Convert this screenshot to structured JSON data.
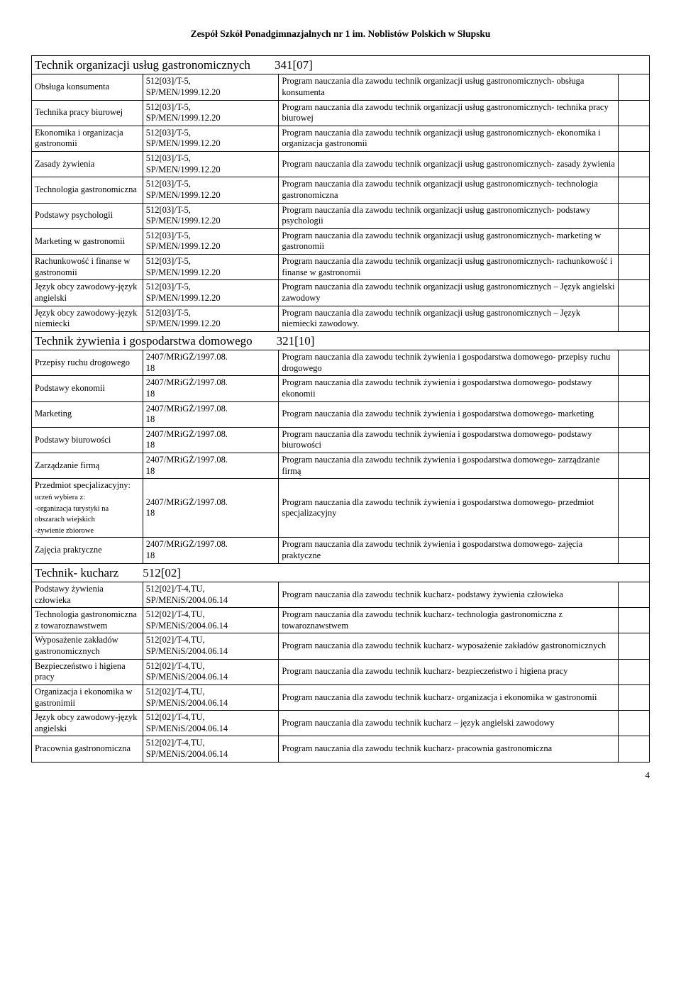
{
  "header": "Zespół Szkół Ponadgimnazjalnych nr 1 im. Noblistów Polskich w Słupsku",
  "page_number": "4",
  "sections": [
    {
      "title_parts": [
        "Technik organizacji usług gastronomicznych",
        "341[07]"
      ],
      "code_const": "512[03]/T-5,\nSP/MEN/1999.12.20",
      "rows": [
        {
          "subj": "Obsługa konsumenta",
          "desc": "Program nauczania dla zawodu technik organizacji usług gastronomicznych- obsługa konsumenta"
        },
        {
          "subj": "Technika pracy biurowej",
          "desc": "Program nauczania dla zawodu technik organizacji usług gastronomicznych- technika pracy biurowej"
        },
        {
          "subj": "Ekonomika i organizacja gastronomii",
          "desc": "Program nauczania dla zawodu technik organizacji usług gastronomicznych- ekonomika i organizacja gastronomii"
        },
        {
          "subj": "Zasady żywienia",
          "desc": "Program nauczania dla zawodu technik organizacji usług gastronomicznych- zasady żywienia"
        },
        {
          "subj": "Technologia gastronomiczna",
          "desc": "Program nauczania dla zawodu technik organizacji usług gastronomicznych- technologia gastronomiczna"
        },
        {
          "subj": "Podstawy psychologii",
          "desc": "Program nauczania dla zawodu technik organizacji usług gastronomicznych- podstawy psychologii"
        },
        {
          "subj": "Marketing w gastronomii",
          "desc": "Program nauczania dla zawodu technik organizacji usług gastronomicznych- marketing w gastronomii"
        },
        {
          "subj": "Rachunkowość i finanse w gastronomii",
          "desc": "Program nauczania dla zawodu technik organizacji usług gastronomicznych- rachunkowość i finanse w gastronomii"
        },
        {
          "subj": "Język obcy zawodowy-język angielski",
          "desc": "Program nauczania dla zawodu technik organizacji usług gastronomicznych – Język angielski zawodowy"
        },
        {
          "subj": "Język obcy zawodowy-język niemiecki",
          "desc": "Program nauczania dla zawodu technik organizacji usług gastronomicznych – Język niemiecki zawodowy."
        }
      ]
    },
    {
      "title_parts": [
        "Technik żywienia i gospodarstwa domowego",
        "321[10]"
      ],
      "code_const": "2407/MRiGŻ/1997.08.\n18",
      "code_align": "center",
      "rows": [
        {
          "subj": "Przepisy ruchu drogowego",
          "desc": "Program nauczania dla zawodu technik żywienia i gospodarstwa domowego- przepisy ruchu drogowego"
        },
        {
          "subj": "Podstawy ekonomii",
          "desc": "Program nauczania dla zawodu technik żywienia i gospodarstwa domowego- podstawy ekonomii"
        },
        {
          "subj": "Marketing",
          "desc": "Program nauczania dla zawodu technik żywienia i gospodarstwa domowego- marketing"
        },
        {
          "subj": "Podstawy biurowości",
          "desc": "Program nauczania dla zawodu technik żywienia i gospodarstwa domowego- podstawy biurowości"
        },
        {
          "subj": "Zarządzanie firmą",
          "desc": "Program nauczania dla zawodu technik żywienia i gospodarstwa domowego- zarządzanie firmą"
        },
        {
          "subj_html": "Przedmiot specjalizacyjny:<br><span class='small-note'>uczeń wybiera z:<br>-organizacja turystyki na obszarach wiejskich<br>-żywienie zbiorowe</span>",
          "desc": "Program nauczania dla zawodu technik żywienia i gospodarstwa domowego- przedmiot specjalizacyjny"
        },
        {
          "subj": "Zajęcia praktyczne",
          "desc": "Program nauczania dla zawodu technik żywienia i gospodarstwa domowego- zajęcia praktyczne"
        }
      ]
    },
    {
      "title_parts": [
        "Technik- kucharz",
        "512[02]"
      ],
      "code_const": "512[02]/T-4,TU,\nSP/MENiS/2004.06.14",
      "rows": [
        {
          "subj": "Podstawy żywienia człowieka",
          "desc": "Program nauczania dla zawodu technik kucharz- podstawy żywienia człowieka"
        },
        {
          "subj": "Technologia gastronomiczna z towaroznawstwem",
          "desc": "Program nauczania dla zawodu technik kucharz- technologia gastronomiczna z towaroznawstwem"
        },
        {
          "subj": "Wyposażenie zakładów gastronomicznych",
          "desc": "Program nauczania dla zawodu technik kucharz- wyposażenie zakładów gastronomicznych"
        },
        {
          "subj": "Bezpieczeństwo i higiena pracy",
          "desc": "Program nauczania dla zawodu technik kucharz- bezpieczeństwo i higiena pracy"
        },
        {
          "subj": "Organizacja i ekonomika w gastronimii",
          "desc": "Program nauczania dla zawodu technik kucharz- organizacja i ekonomika w gastronomii"
        },
        {
          "subj": "Język obcy zawodowy-język angielski",
          "desc": "Program nauczania dla zawodu technik kucharz – język angielski zawodowy"
        },
        {
          "subj": "Pracownia gastronomiczna",
          "desc": "Program nauczania dla zawodu technik kucharz- pracownia gastronomiczna"
        }
      ]
    }
  ]
}
